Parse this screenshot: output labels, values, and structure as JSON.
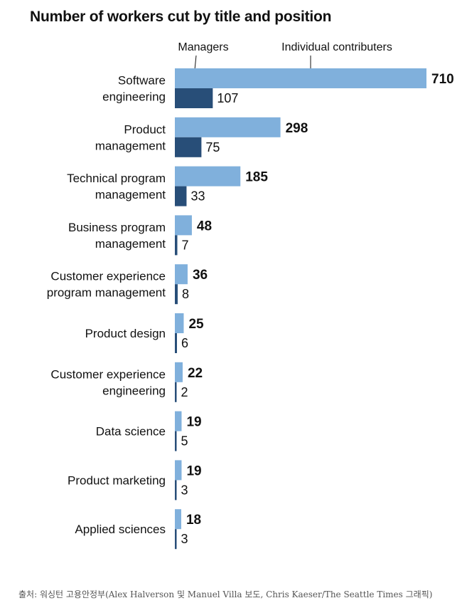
{
  "title": "Number of workers cut by title and position",
  "source": "출처: 워싱턴 고용안정부(Alex Halverson 및 Manuel Villa 보도, Chris Kaeser/The Seattle Times 그래픽)",
  "legend": {
    "managers": "Managers",
    "individual": "Individual contributers"
  },
  "colors": {
    "individual": "#80b0dc",
    "managers": "#284e78",
    "text": "#111111"
  },
  "chart_data": {
    "type": "bar",
    "orientation": "horizontal",
    "title": "Number of workers cut by title and position",
    "categories": [
      [
        "Software",
        "engineering"
      ],
      [
        "Product",
        "management"
      ],
      [
        "Technical program",
        "management"
      ],
      [
        "Business program",
        "management"
      ],
      [
        "Customer experience",
        "program management"
      ],
      [
        "Product design"
      ],
      [
        "Customer experience",
        "engineering"
      ],
      [
        "Data science"
      ],
      [
        "Product marketing"
      ],
      [
        "Applied sciences"
      ]
    ],
    "series": [
      {
        "name": "Individual contributers",
        "values": [
          710,
          298,
          185,
          48,
          36,
          25,
          22,
          19,
          19,
          18
        ]
      },
      {
        "name": "Managers",
        "values": [
          107,
          75,
          33,
          7,
          8,
          6,
          2,
          5,
          3,
          3
        ]
      }
    ],
    "xlim": [
      0,
      710
    ],
    "grid": false,
    "legend_position": "top, as labels with leader lines"
  }
}
